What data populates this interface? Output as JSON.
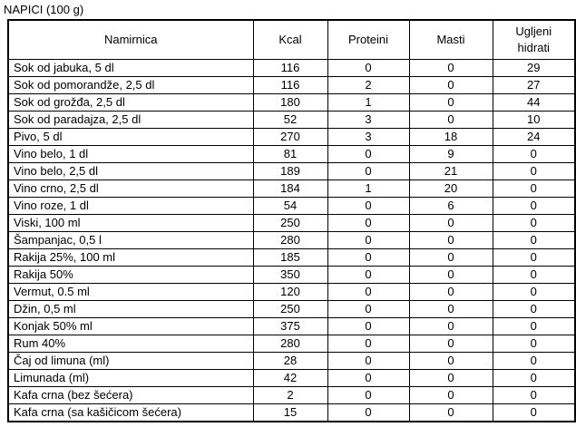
{
  "title": "NAPICI (100 g)",
  "table": {
    "columns": [
      "Namirnica",
      "Kcal",
      "Proteini",
      "Masti",
      "Ugljeni hidrati"
    ],
    "rows": [
      [
        "Sok od jabuka, 5 dl",
        "116",
        "0",
        "0",
        "29"
      ],
      [
        "Sok od pomorandže, 2,5 dl",
        "116",
        "2",
        "0",
        "27"
      ],
      [
        "Sok od grožđa, 2,5 dl",
        "180",
        "1",
        "0",
        "44"
      ],
      [
        "Sok od paradajza, 2,5 dl",
        "52",
        "3",
        "0",
        "10"
      ],
      [
        "Pivo, 5 dl",
        "270",
        "3",
        "18",
        "24"
      ],
      [
        "Vino belo, 1 dl",
        "81",
        "0",
        "9",
        "0"
      ],
      [
        "Vino belo, 2,5 dl",
        "189",
        "0",
        "21",
        "0"
      ],
      [
        "Vino crno, 2,5 dl",
        "184",
        "1",
        "20",
        "0"
      ],
      [
        "Vino roze, 1 dl",
        "54",
        "0",
        "6",
        "0"
      ],
      [
        "Viski, 100 ml",
        "250",
        "0",
        "0",
        "0"
      ],
      [
        "Šampanjac, 0,5 l",
        "280",
        "0",
        "0",
        "0"
      ],
      [
        "Rakija 25%, 100 ml",
        "185",
        "0",
        "0",
        "0"
      ],
      [
        "Rakija 50%",
        "350",
        "0",
        "0",
        "0"
      ],
      [
        "Vermut, 0.5 ml",
        "120",
        "0",
        "0",
        "0"
      ],
      [
        "Džin, 0,5 ml",
        "250",
        "0",
        "0",
        "0"
      ],
      [
        "Konjak 50% ml",
        "375",
        "0",
        "0",
        "0"
      ],
      [
        "Rum 40%",
        "280",
        "0",
        "0",
        "0"
      ],
      [
        "Čaj od limuna (ml)",
        "28",
        "0",
        "0",
        "0"
      ],
      [
        "Limunada (ml)",
        "42",
        "0",
        "0",
        "0"
      ],
      [
        "Kafa crna (bez šećera)",
        "2",
        "0",
        "0",
        "0"
      ],
      [
        "Kafa crna (sa kašičicom šećera)",
        "15",
        "0",
        "0",
        "0"
      ]
    ]
  },
  "colors": {
    "text": "#000000",
    "background": "#ffffff",
    "border": "#000000"
  }
}
